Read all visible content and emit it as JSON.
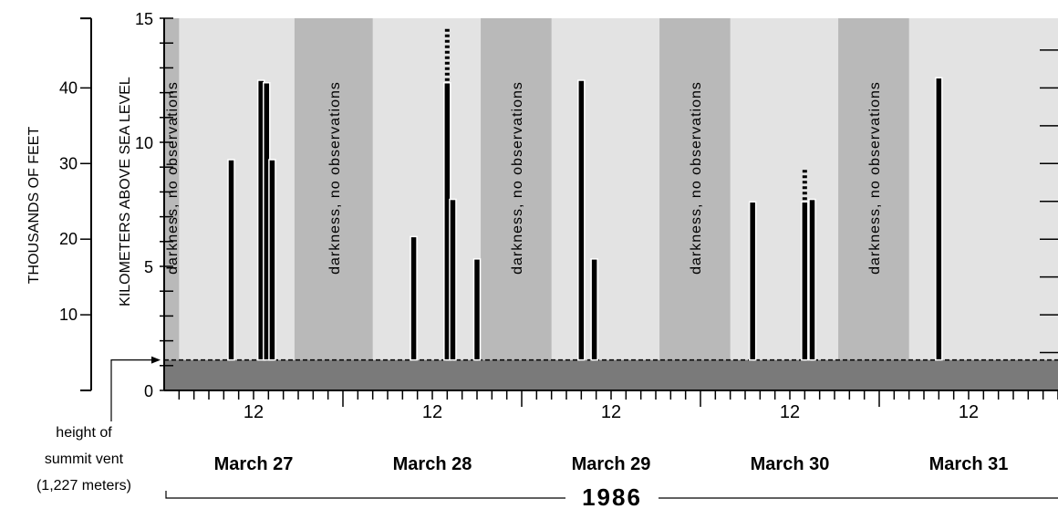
{
  "chart_data": {
    "type": "bar",
    "title": "",
    "year_label": "1986",
    "xlabel": "",
    "ylabel_km": "KILOMETERS ABOVE SEA LEVEL",
    "ylabel_ft": "THOUSANDS OF FEET",
    "ylim_km": [
      0,
      15
    ],
    "ylim_kft": [
      0,
      49.2
    ],
    "yticks_km": [
      0,
      5,
      10,
      15
    ],
    "yticks_kft": [
      10,
      20,
      30,
      40
    ],
    "xlim_days": [
      "March 27 00:00",
      "April 1 00:00"
    ],
    "day_labels": [
      "March 27",
      "March 28",
      "March 29",
      "March 30",
      "March 31"
    ],
    "noon_label": "12",
    "summit_vent_km": 1.227,
    "summit_note": [
      "height of",
      "summit vent",
      "(1,227 meters)"
    ],
    "darkness_label": "darkness, no observations",
    "darkness_periods": [
      {
        "start": "March 27 00:00",
        "end": "March 27 02:00"
      },
      {
        "start": "March 27 17:30",
        "end": "March 28 04:00"
      },
      {
        "start": "March 28 18:30",
        "end": "March 29 04:00"
      },
      {
        "start": "March 29 18:30",
        "end": "March 30 04:00"
      },
      {
        "start": "March 30 18:30",
        "end": "March 31 04:00"
      }
    ],
    "eruption_columns": [
      {
        "time": "March 27 09:00",
        "height_km": 9.3
      },
      {
        "time": "March 27 13:00",
        "height_km": 12.5
      },
      {
        "time": "March 27 13:45",
        "height_km": 12.4
      },
      {
        "time": "March 27 14:30",
        "height_km": 9.3
      },
      {
        "time": "March 28 09:30",
        "height_km": 6.2
      },
      {
        "time": "March 28 14:00",
        "height_km": 12.4,
        "uncertain_top_km": 14.6
      },
      {
        "time": "March 28 14:45",
        "height_km": 7.7
      },
      {
        "time": "March 28 18:00",
        "height_km": 5.3
      },
      {
        "time": "March 29 08:00",
        "height_km": 12.5
      },
      {
        "time": "March 29 09:45",
        "height_km": 5.3
      },
      {
        "time": "March 30 07:00",
        "height_km": 7.6
      },
      {
        "time": "March 30 14:00",
        "height_km": 7.6,
        "uncertain_top_km": 9.0
      },
      {
        "time": "March 30 15:00",
        "height_km": 7.7
      },
      {
        "time": "March 31 08:00",
        "height_km": 12.6
      }
    ],
    "colors": {
      "daylight": "#e3e3e3",
      "darkness": "#b9b9b9",
      "ground": "#7a7a7a",
      "bar": "#000000",
      "bar_edge": "#ffffff"
    }
  }
}
